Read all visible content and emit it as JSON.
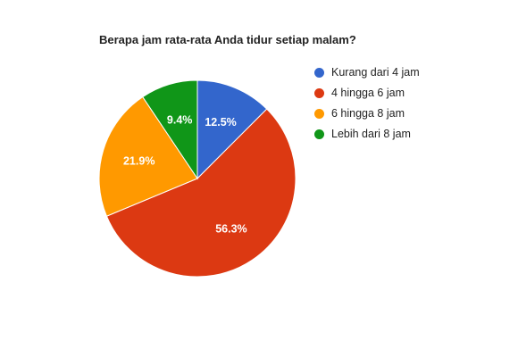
{
  "chart_data": {
    "type": "pie",
    "title": "Berapa jam rata-rata Anda tidur setiap malam?",
    "categories": [
      "Kurang dari 4 jam",
      "4 hingga 6 jam",
      "6 hingga 8 jam",
      "Lebih dari 8 jam"
    ],
    "values": [
      12.5,
      56.3,
      21.9,
      9.4
    ],
    "data_labels": [
      "12.5%",
      "56.3%",
      "21.9%",
      "9.4%"
    ],
    "colors": [
      "#3366cc",
      "#dc3912",
      "#ff9900",
      "#109618"
    ],
    "legend_position": "right",
    "start_angle": "12 o'clock",
    "direction": "clockwise"
  }
}
